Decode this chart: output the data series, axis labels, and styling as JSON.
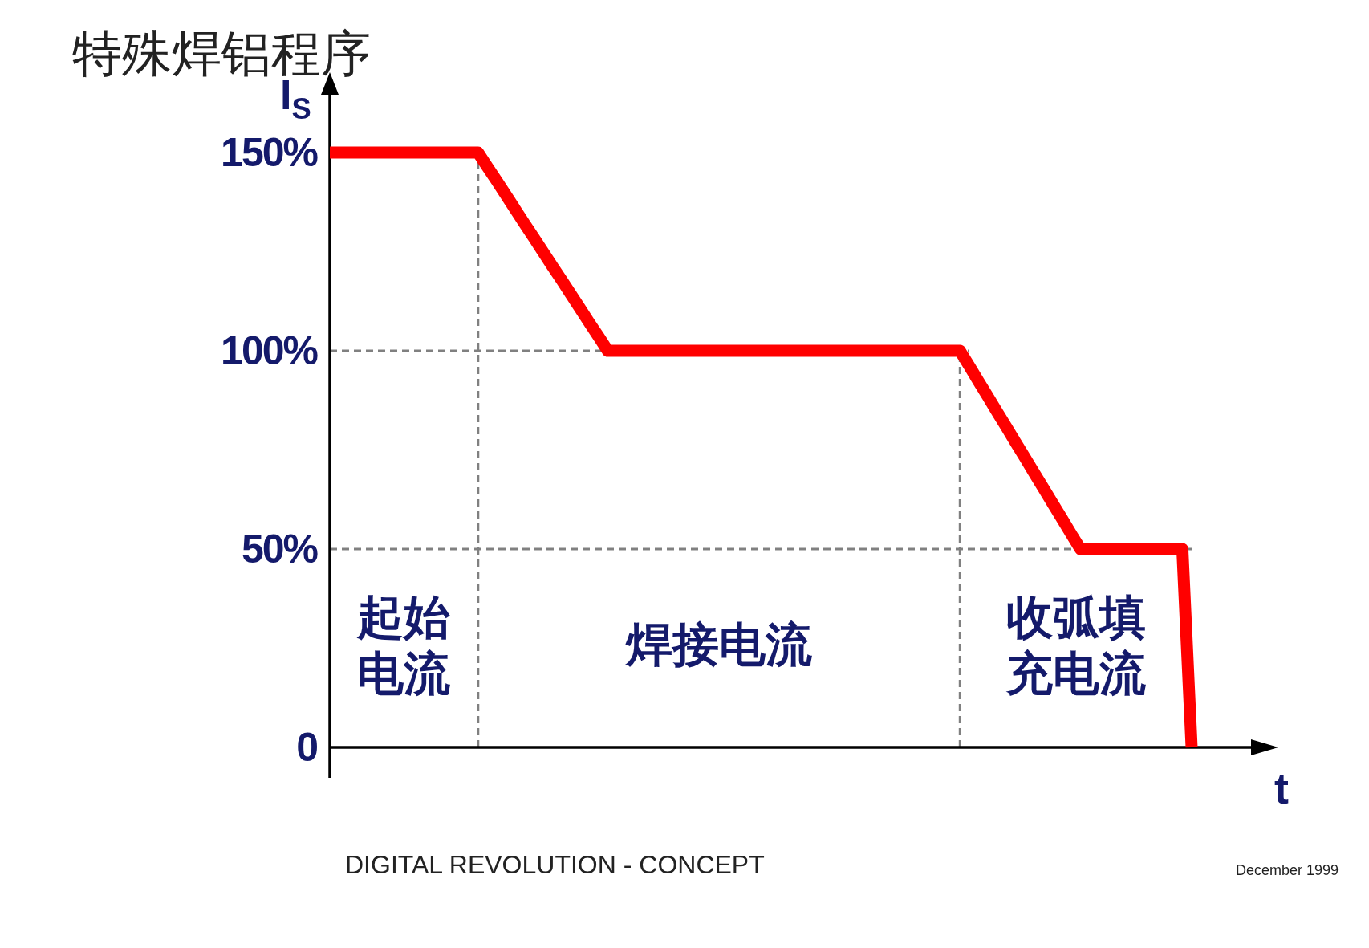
{
  "chart_data": {
    "type": "line",
    "title": "特殊焊铝程序",
    "xlabel": "t",
    "ylabel": "I$_{S}$",
    "ylim": [
      0,
      165
    ],
    "yticks": [
      0,
      {
        "value": 50,
        "label": "50%"
      },
      {
        "value": 100,
        "label": "100%"
      },
      {
        "value": 150,
        "label": "150%"
      }
    ],
    "tick_labels": "y",
    "grid": false,
    "categories": [
      null,
      null,
      null,
      null,
      null,
      null,
      null,
      null,
      null,
      null,
      null,
      null,
      null,
      null,
      null,
      null,
      null,
      null,
      null,
      null,
      null,
      null,
      null,
      null,
      null,
      null,
      null,
      null,
      null,
      null,
      null,
      null,
      null,
      null,
      null,
      null,
      null,
      null,
      null,
      null,
      null,
      null,
      null,
      null,
      null,
      null,
      null,
      null,
      null,
      null,
      null,
      null,
      null,
      null,
      null,
      null,
      null,
      null,
      null,
      null,
      null,
      null,
      null,
      null,
      null,
      null,
      null,
      null,
      null,
      null,
      null,
      null,
      null,
      null,
      null,
      null,
      null,
      null,
      null,
      null,
      null,
      null,
      null,
      null,
      null,
      null,
      null,
      null,
      null,
      null,
      null,
      null,
      null,
      null
    ],
    "series": [
      {
        "color": "#ff0000",
        "values": [
          150,
          150,
          150,
          150,
          150,
          150,
          150,
          150,
          150,
          150,
          150,
          150,
          150,
          150,
          150,
          150,
          150,
          146.4,
          142.9,
          139.3,
          135.7,
          132.1,
          128.6,
          125,
          121.4,
          117.9,
          114.3,
          110.7,
          107.1,
          103.6,
          100,
          100,
          100,
          100,
          100,
          100,
          100,
          100,
          100,
          100,
          100,
          100,
          100,
          100,
          100,
          100,
          100,
          100,
          100,
          100,
          100,
          100,
          100,
          100,
          100,
          100,
          100,
          100,
          100,
          100,
          100,
          100,
          100,
          100,
          100,
          100,
          100,
          100,
          100,
          96.2,
          92.3,
          88.5,
          84.6,
          80.8,
          76.9,
          73.1,
          69.2,
          65.4,
          61.5,
          57.7,
          53.8,
          50,
          50,
          50,
          50,
          50,
          50,
          50,
          50,
          50,
          50,
          50,
          50,
          0
        ]
      }
    ],
    "ref_lines": [
      {
        "axis": "y",
        "value": 100,
        "color": "#808080",
        "line_style": "dashed"
      },
      {
        "axis": "y",
        "value": 50,
        "color": "#808080",
        "line_style": "dashed"
      }
    ],
    "annotations": [
      "起始电流",
      "焊接电流",
      "收弧填充电流",
      "DIGITAL REVOLUTION - CONCEPT",
      "December 1999"
    ]
  }
}
